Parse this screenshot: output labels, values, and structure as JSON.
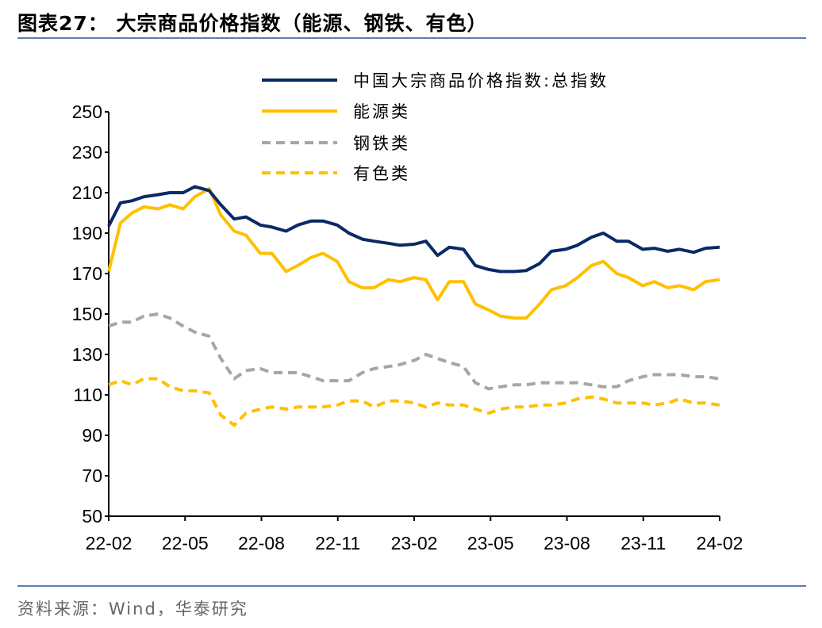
{
  "header": {
    "title": "图表27：  大宗商品价格指数（能源、钢铁、有色）"
  },
  "footer": {
    "source": "资料来源：Wind，华泰研究"
  },
  "colors": {
    "rule": "#5b7fb0",
    "navy": "#0a2a66",
    "gold": "#ffc000",
    "gray": "#a6a6a6"
  },
  "chart_data": {
    "type": "line",
    "title": "",
    "xlabel": "",
    "ylabel": "",
    "ylim": [
      50,
      250
    ],
    "yticks": [
      "250",
      "230",
      "210",
      "190",
      "170",
      "150",
      "130",
      "110",
      "90",
      "70",
      "50"
    ],
    "xticks": [
      "22-02",
      "22-05",
      "22-08",
      "22-11",
      "23-02",
      "23-05",
      "23-08",
      "23-11",
      "24-02"
    ],
    "xrange": [
      "2022-02-01",
      "2024-02-01"
    ],
    "grid": false,
    "legend_position": "top-right",
    "x": [
      "2022-02-01",
      "2022-02-15",
      "2022-03-01",
      "2022-03-15",
      "2022-04-01",
      "2022-04-15",
      "2022-05-01",
      "2022-05-15",
      "2022-06-01",
      "2022-06-15",
      "2022-07-01",
      "2022-07-15",
      "2022-08-01",
      "2022-08-15",
      "2022-09-01",
      "2022-09-15",
      "2022-10-01",
      "2022-10-15",
      "2022-11-01",
      "2022-11-15",
      "2022-12-01",
      "2022-12-15",
      "2023-01-01",
      "2023-01-15",
      "2023-02-01",
      "2023-02-15",
      "2023-03-01",
      "2023-03-15",
      "2023-04-01",
      "2023-04-15",
      "2023-05-01",
      "2023-05-15",
      "2023-06-01",
      "2023-06-15",
      "2023-07-01",
      "2023-07-15",
      "2023-08-01",
      "2023-08-15",
      "2023-09-01",
      "2023-09-15",
      "2023-10-01",
      "2023-10-15",
      "2023-11-01",
      "2023-11-15",
      "2023-12-01",
      "2023-12-15",
      "2024-01-01",
      "2024-01-15",
      "2024-02-01"
    ],
    "series": [
      {
        "name": "中国大宗商品价格指数:总指数",
        "color": "#0a2a66",
        "dash": "solid",
        "values": [
          193.5,
          205,
          206,
          208,
          209,
          210,
          210,
          213,
          211,
          204,
          197,
          198,
          194,
          193,
          191,
          194,
          196,
          196,
          194,
          190,
          187,
          186,
          185,
          184,
          184.5,
          186,
          179,
          183,
          182,
          174,
          172,
          171,
          171,
          171.5,
          175,
          181,
          182,
          184,
          188,
          190,
          186,
          186,
          182,
          182.5,
          181,
          182,
          180.5,
          182.5,
          183
        ]
      },
      {
        "name": "能源类",
        "color": "#ffc000",
        "dash": "solid",
        "values": [
          171,
          195,
          200,
          203,
          202,
          204,
          202,
          208,
          212,
          199,
          191,
          189,
          180,
          180,
          171,
          174,
          178,
          180,
          176,
          166,
          163,
          163,
          167,
          166,
          168,
          167,
          157,
          166,
          166,
          155,
          152,
          149,
          148,
          148,
          155,
          162,
          164,
          168,
          174,
          176,
          170,
          168,
          164,
          166,
          163,
          164,
          162,
          166,
          167
        ]
      },
      {
        "name": "钢铁类",
        "color": "#a6a6a6",
        "dash": "dashed",
        "values": [
          144,
          146,
          146,
          149,
          150,
          148,
          144,
          141,
          139,
          128,
          118,
          122,
          123,
          121,
          121,
          121,
          119,
          117,
          117,
          117,
          121,
          123,
          124,
          125,
          127,
          130,
          128,
          126,
          124,
          116,
          113,
          114,
          115,
          115,
          116,
          116,
          116,
          116,
          115,
          114,
          114,
          117,
          119,
          120,
          120,
          120,
          119,
          119,
          118
        ]
      },
      {
        "name": "有色类",
        "color": "#ffc000",
        "dash": "dashed",
        "values": [
          115,
          117,
          115,
          118,
          118,
          114,
          112,
          112,
          111,
          100,
          95,
          101,
          103,
          104,
          103,
          104,
          104,
          104,
          105,
          107,
          107,
          104,
          107,
          107,
          106,
          104,
          106,
          105,
          105,
          103,
          101,
          103,
          104,
          104,
          105,
          105,
          106,
          108,
          109,
          108,
          106,
          106,
          106,
          105,
          106,
          108,
          106,
          106,
          105
        ]
      }
    ]
  }
}
